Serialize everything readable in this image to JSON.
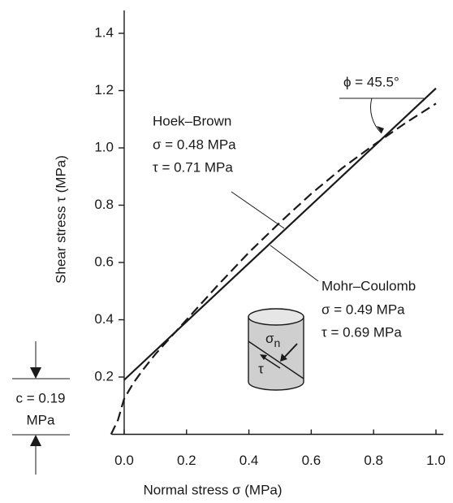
{
  "chart_data": {
    "type": "line",
    "x_label": "Normal stress σ (MPa)",
    "y_label": "Shear stress τ (MPa)",
    "xlim": [
      -0.04,
      1.05
    ],
    "ylim": [
      0,
      1.48
    ],
    "xticks": [
      {
        "value": 0,
        "label": "0.0"
      },
      0.2,
      0.4,
      0.6,
      0.8,
      {
        "value": 1,
        "label": "1.0"
      }
    ],
    "yticks": [
      0.2,
      0.4,
      0.6,
      0.8,
      {
        "value": 1,
        "label": "1.0"
      },
      1.2,
      1.4
    ],
    "series": [
      {
        "color": "#1a1a1a",
        "dash": false,
        "x": [
          0,
          1.0
        ],
        "values": [
          0.19,
          1.208
        ]
      },
      {
        "color": "#1a1a1a",
        "dash": true,
        "x": [
          -0.042,
          -0.02,
          0,
          0.03,
          0.06,
          0.1,
          0.15,
          0.2,
          0.3,
          0.4,
          0.5,
          0.6,
          0.7,
          0.8,
          0.9,
          1.0
        ],
        "values": [
          0,
          0.05,
          0.125,
          0.18,
          0.225,
          0.28,
          0.34,
          0.4,
          0.52,
          0.635,
          0.74,
          0.84,
          0.93,
          1.01,
          1.085,
          1.155
        ]
      }
    ],
    "annotations": {
      "hoek_brown": [
        "Hoek–Brown",
        "σ = 0.48 MPa",
        "τ = 0.71 MPa"
      ],
      "mohr_coulomb": [
        "Mohr–Coulomb",
        "σ = 0.49 MPa",
        "τ = 0.69 MPa"
      ],
      "friction_angle": "ϕ = 45.5°",
      "cohesion": [
        "c = 0.19",
        "MPa"
      ],
      "cylinder": {
        "normal": "σ",
        "normal_subscript": "n",
        "shear": "τ"
      }
    }
  }
}
